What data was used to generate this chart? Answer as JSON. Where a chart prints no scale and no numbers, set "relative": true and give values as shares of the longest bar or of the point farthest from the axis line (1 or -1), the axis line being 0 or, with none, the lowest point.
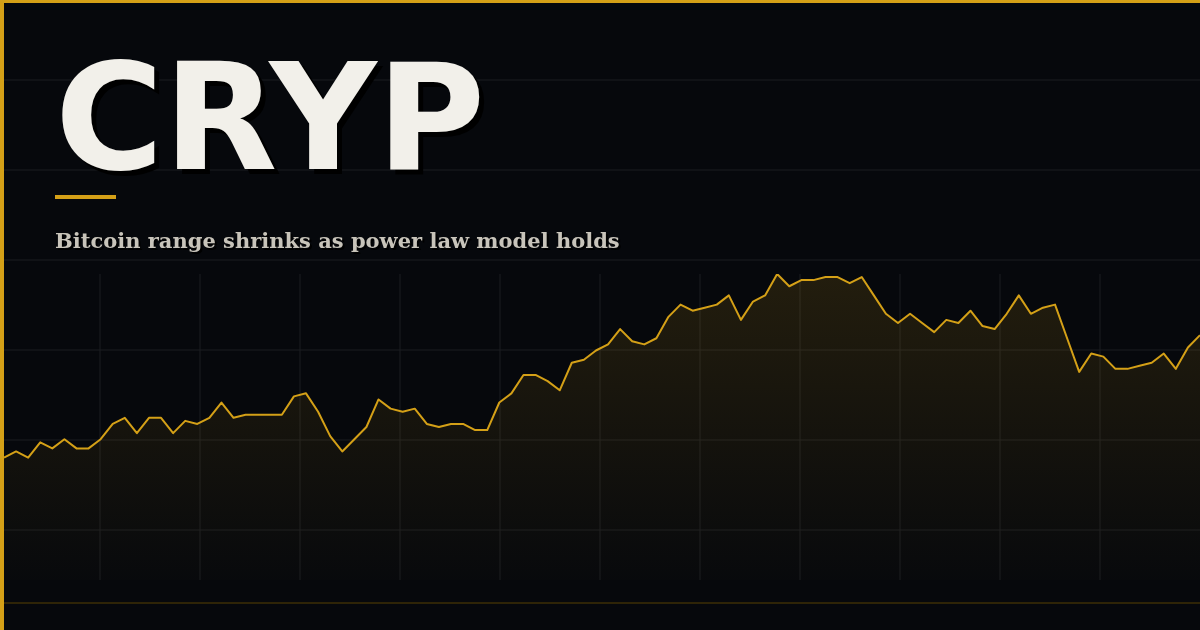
{
  "chart_data": {
    "type": "area",
    "title": "CRYP",
    "subtitle": "Bitcoin range shrinks as power law model holds",
    "relative": true,
    "grid": true,
    "categories": [
      null,
      null,
      null,
      null,
      null,
      null,
      null,
      null,
      null,
      null,
      null,
      null,
      null,
      null,
      null,
      null,
      null,
      null,
      null,
      null,
      null,
      null,
      null,
      null,
      null,
      null,
      null,
      null,
      null,
      null,
      null,
      null,
      null,
      null,
      null,
      null,
      null,
      null,
      null,
      null,
      null,
      null,
      null,
      null,
      null,
      null,
      null,
      null,
      null,
      null,
      null,
      null,
      null,
      null,
      null,
      null,
      null,
      null,
      null,
      null,
      null,
      null,
      null,
      null,
      null,
      null,
      null,
      null,
      null,
      null,
      null,
      null,
      null,
      null,
      null,
      null,
      null,
      null,
      null,
      null,
      null,
      null,
      null,
      null,
      null,
      null,
      null,
      null,
      null,
      null,
      null,
      null,
      null,
      null,
      null,
      null,
      null,
      null,
      null,
      null
    ],
    "series": [
      {
        "color": "#d4a017",
        "values": [
          0.4,
          0.42,
          0.4,
          0.45,
          0.43,
          0.46,
          0.43,
          0.43,
          0.46,
          0.51,
          0.53,
          0.48,
          0.53,
          0.53,
          0.48,
          0.52,
          0.51,
          0.53,
          0.58,
          0.53,
          0.54,
          0.54,
          0.54,
          0.54,
          0.6,
          0.61,
          0.55,
          0.47,
          0.42,
          0.46,
          0.5,
          0.59,
          0.56,
          0.55,
          0.56,
          0.51,
          0.5,
          0.51,
          0.51,
          0.49,
          0.49,
          0.58,
          0.61,
          0.67,
          0.67,
          0.65,
          0.62,
          0.71,
          0.72,
          0.75,
          0.77,
          0.82,
          0.78,
          0.77,
          0.79,
          0.86,
          0.9,
          0.88,
          0.89,
          0.9,
          0.93,
          0.85,
          0.91,
          0.93,
          1,
          0.96,
          0.98,
          0.98,
          0.99,
          0.99,
          0.97,
          0.99,
          0.93,
          0.87,
          0.84,
          0.87,
          0.84,
          0.81,
          0.85,
          0.84,
          0.88,
          0.83,
          0.82,
          0.87,
          0.93,
          0.87,
          0.89,
          0.9,
          0.79,
          0.68,
          0.74,
          0.73,
          0.69,
          0.69,
          0.7,
          0.71,
          0.74,
          0.69,
          0.76,
          0.8
        ]
      }
    ]
  }
}
